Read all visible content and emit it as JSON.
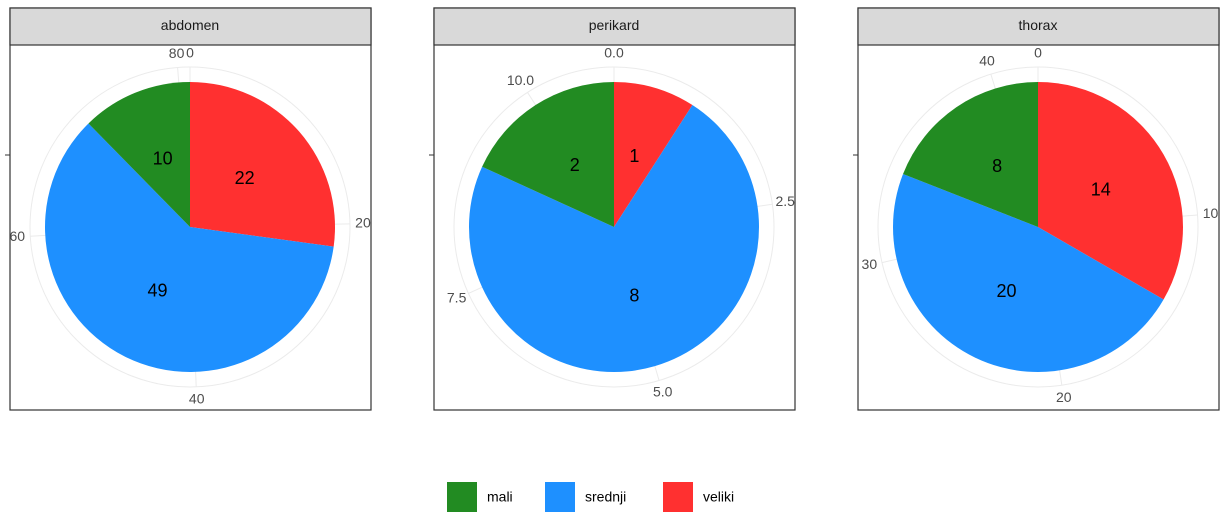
{
  "chart_data": [
    {
      "type": "pie",
      "title": "abdomen",
      "categories": [
        "mali",
        "srednji",
        "veliki"
      ],
      "values": [
        10,
        49,
        22
      ],
      "colors": [
        "#228b22",
        "#1e90ff",
        "#ff3030"
      ],
      "xlim": [
        0,
        81
      ],
      "xticks": [
        0,
        20,
        40,
        60,
        80
      ]
    },
    {
      "type": "pie",
      "title": "perikard",
      "categories": [
        "mali",
        "srednji",
        "veliki"
      ],
      "values": [
        2,
        8,
        1
      ],
      "colors": [
        "#228b22",
        "#1e90ff",
        "#ff3030"
      ],
      "xlim": [
        0,
        11
      ],
      "xticks": [
        {
          "value": 0,
          "label": "0.0"
        },
        {
          "value": 2.5,
          "label": "2.5"
        },
        {
          "value": 5,
          "label": "5.0"
        },
        {
          "value": 7.5,
          "label": "7.5"
        },
        {
          "value": 10,
          "label": "10.0"
        }
      ]
    },
    {
      "type": "pie",
      "title": "thorax",
      "categories": [
        "mali",
        "srednji",
        "veliki"
      ],
      "values": [
        8,
        20,
        14
      ],
      "colors": [
        "#228b22",
        "#1e90ff",
        "#ff3030"
      ],
      "xlim": [
        0,
        42
      ],
      "xticks": [
        0,
        10,
        20,
        30,
        40
      ]
    }
  ]
}
